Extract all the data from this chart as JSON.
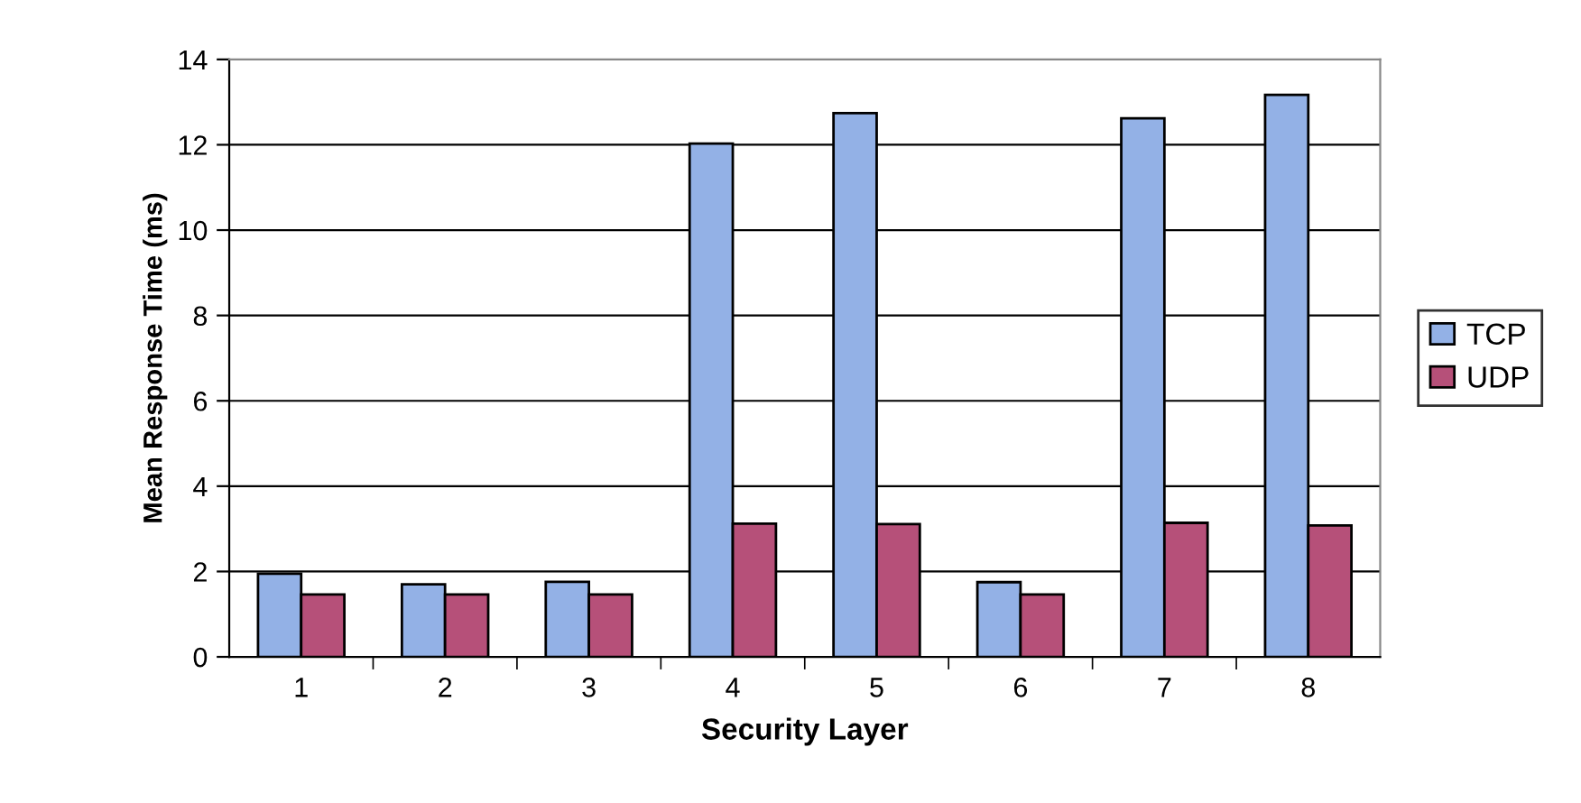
{
  "chart_data": {
    "type": "bar",
    "xlabel": "Security Layer",
    "ylabel": "Mean Response Time (ms)",
    "categories": [
      "1",
      "2",
      "3",
      "4",
      "5",
      "6",
      "7",
      "8"
    ],
    "series": [
      {
        "name": "TCP",
        "color": "#93b1e6",
        "values": [
          1.95,
          1.7,
          1.76,
          12.03,
          12.74,
          1.75,
          12.62,
          13.17
        ]
      },
      {
        "name": "UDP",
        "color": "#b65079",
        "values": [
          1.46,
          1.46,
          1.46,
          3.12,
          3.11,
          1.46,
          3.14,
          3.08
        ]
      }
    ],
    "ylim": [
      0,
      14
    ],
    "yticks": [
      0,
      2,
      4,
      6,
      8,
      10,
      12,
      14
    ],
    "grid": "y",
    "legend": "right"
  }
}
